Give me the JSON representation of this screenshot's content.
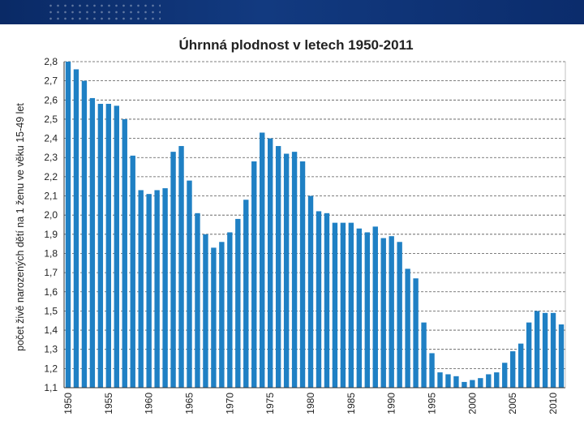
{
  "slide": {
    "header_band_color": "#0d3174"
  },
  "chart_data": {
    "type": "bar",
    "title": "Úhrnná plodnost  v letech 1950-2011",
    "xlabel": "",
    "ylabel": "počet živě narozených dětí na 1 ženu ve věku 15-49 let",
    "ylim": [
      1.1,
      2.8
    ],
    "yticks": [
      "1,1",
      "1,2",
      "1,3",
      "1,4",
      "1,5",
      "1,6",
      "1,7",
      "1,8",
      "1,9",
      "2,0",
      "2,1",
      "2,2",
      "2,3",
      "2,4",
      "2,5",
      "2,6",
      "2,7",
      "2,8"
    ],
    "grid": true,
    "bar_color": "#1f80c4",
    "categories": [
      1950,
      1951,
      1952,
      1953,
      1954,
      1955,
      1956,
      1957,
      1958,
      1959,
      1960,
      1961,
      1962,
      1963,
      1964,
      1965,
      1966,
      1967,
      1968,
      1969,
      1970,
      1971,
      1972,
      1973,
      1974,
      1975,
      1976,
      1977,
      1978,
      1979,
      1980,
      1981,
      1982,
      1983,
      1984,
      1985,
      1986,
      1987,
      1988,
      1989,
      1990,
      1991,
      1992,
      1993,
      1994,
      1995,
      1996,
      1997,
      1998,
      1999,
      2000,
      2001,
      2002,
      2003,
      2004,
      2005,
      2006,
      2007,
      2008,
      2009,
      2010,
      2011
    ],
    "xtick_labels": [
      "1950",
      "1955",
      "1960",
      "1965",
      "1970",
      "1975",
      "1980",
      "1985",
      "1990",
      "1995",
      "2000",
      "2005",
      "2010"
    ],
    "values": [
      2.8,
      2.76,
      2.7,
      2.61,
      2.58,
      2.58,
      2.57,
      2.5,
      2.31,
      2.13,
      2.11,
      2.13,
      2.14,
      2.33,
      2.36,
      2.18,
      2.01,
      1.9,
      1.83,
      1.86,
      1.91,
      1.98,
      2.08,
      2.28,
      2.43,
      2.4,
      2.36,
      2.32,
      2.33,
      2.28,
      2.1,
      2.02,
      2.01,
      1.96,
      1.96,
      1.96,
      1.93,
      1.91,
      1.94,
      1.88,
      1.89,
      1.86,
      1.72,
      1.67,
      1.44,
      1.28,
      1.18,
      1.17,
      1.16,
      1.13,
      1.14,
      1.15,
      1.17,
      1.18,
      1.23,
      1.29,
      1.33,
      1.44,
      1.5,
      1.49,
      1.49,
      1.43
    ]
  }
}
